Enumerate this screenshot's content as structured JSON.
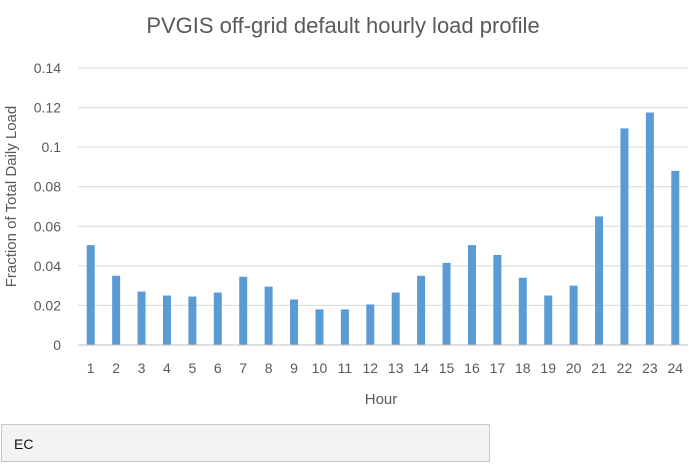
{
  "chart_data": {
    "type": "bar",
    "title": "PVGIS off-grid default hourly load profile",
    "xlabel": "Hour",
    "ylabel": "Fraction of Total Daily Load",
    "categories": [
      "1",
      "2",
      "3",
      "4",
      "5",
      "6",
      "7",
      "8",
      "9",
      "10",
      "11",
      "12",
      "13",
      "14",
      "15",
      "16",
      "17",
      "18",
      "19",
      "20",
      "21",
      "22",
      "23",
      "24"
    ],
    "values": [
      0.0505,
      0.035,
      0.027,
      0.025,
      0.0245,
      0.0265,
      0.0345,
      0.0295,
      0.023,
      0.018,
      0.018,
      0.0205,
      0.0265,
      0.035,
      0.0415,
      0.0505,
      0.0455,
      0.034,
      0.025,
      0.03,
      0.065,
      0.1095,
      0.1175,
      0.088
    ],
    "ylim": [
      0,
      0.14
    ],
    "yticks": [
      0,
      0.02,
      0.04,
      0.06,
      0.08,
      0.1,
      0.12,
      0.14
    ],
    "ytick_labels": [
      "0",
      "0.02",
      "0.04",
      "0.06",
      "0.08",
      "0.1",
      "0.12",
      "0.14"
    ],
    "grid": true,
    "legend": "none",
    "colors": {
      "bar": "#5b9bd5",
      "grid": "#d9d9d9",
      "axis": "#bfbfbf",
      "text": "#595959"
    }
  },
  "caption": {
    "text": "EC"
  }
}
